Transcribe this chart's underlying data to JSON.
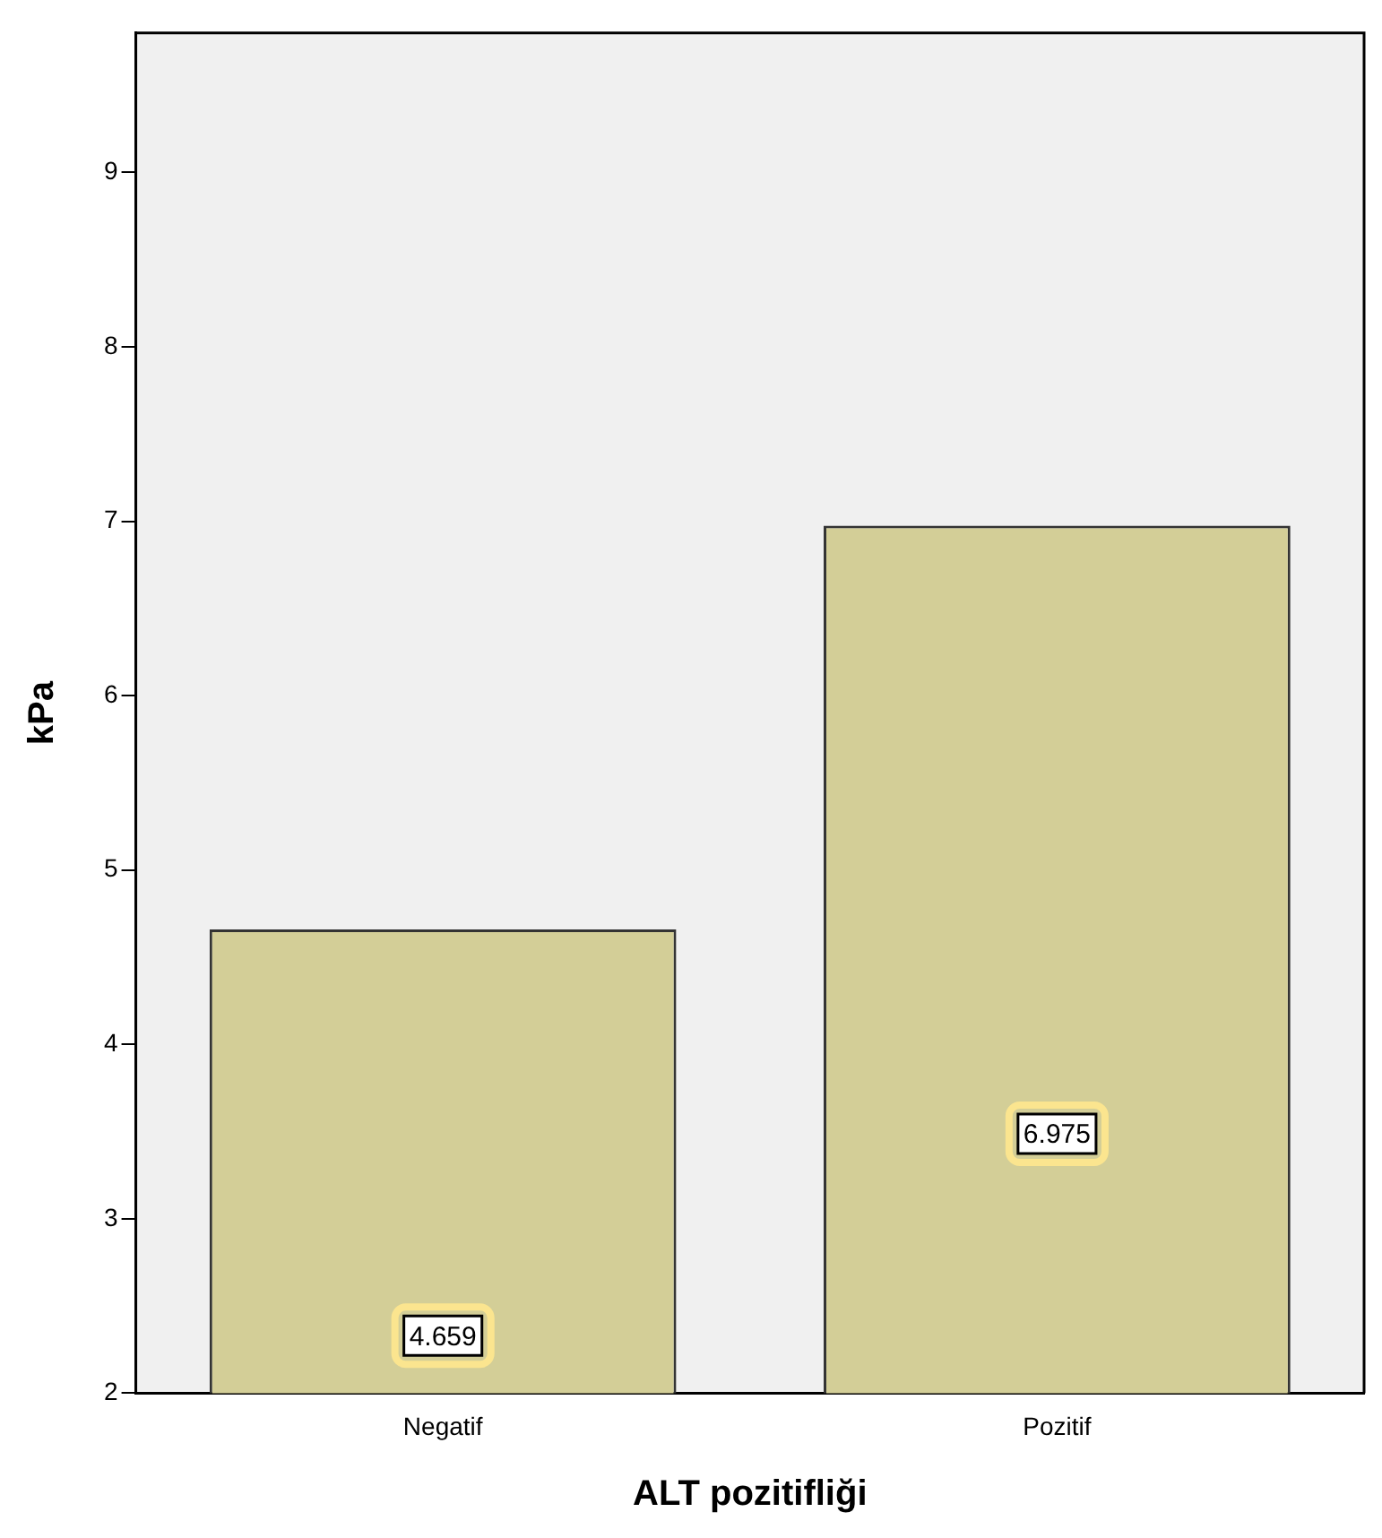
{
  "chart_data": {
    "type": "bar",
    "xlabel": "ALT pozitifliği",
    "ylabel": "kPa",
    "categories": [
      "Negatif",
      "Pozitif"
    ],
    "values": [
      4.659,
      6.975
    ],
    "color": "#d3ce97",
    "ylim": [
      2,
      9.8
    ],
    "yticks": [
      2,
      3,
      4,
      5,
      6,
      7,
      8,
      9
    ],
    "grid": false,
    "legend": false,
    "data_labels": true
  }
}
